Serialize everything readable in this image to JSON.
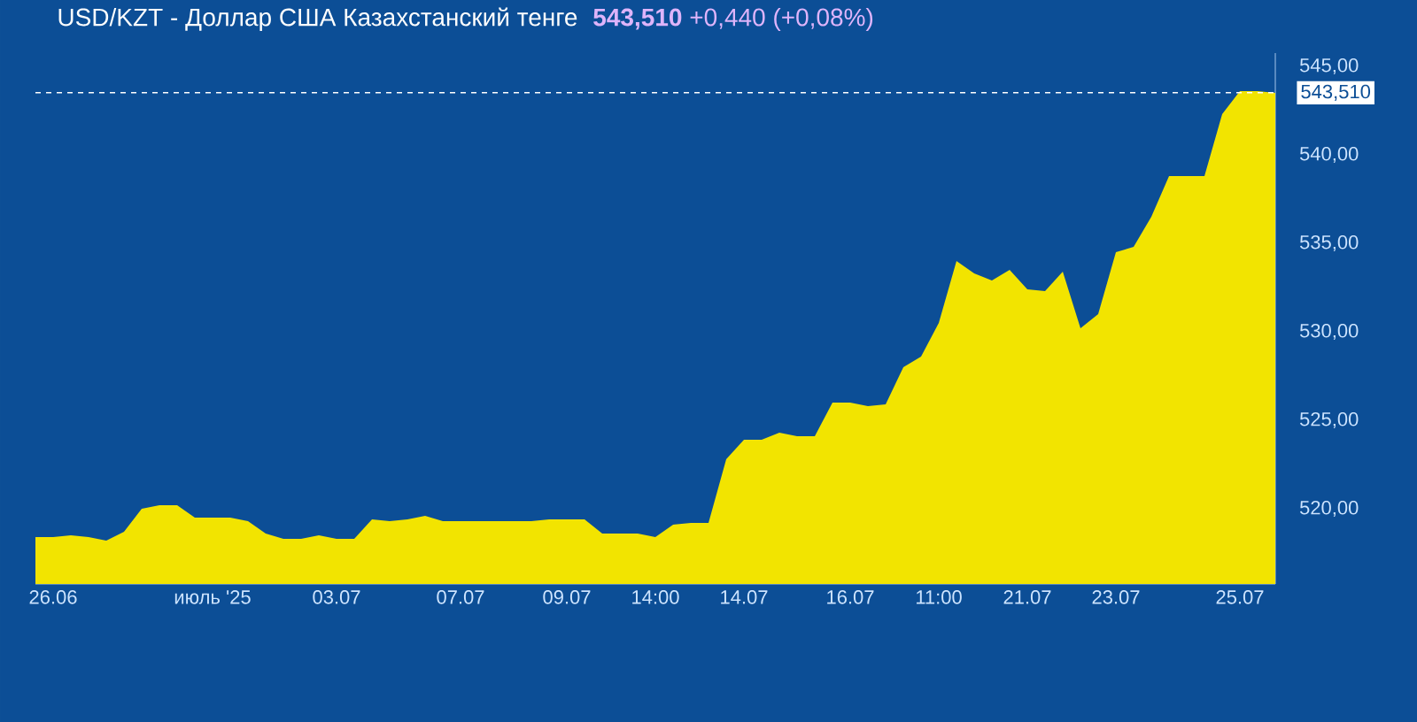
{
  "chart_data": {
    "type": "area",
    "title": "USD/KZT - Доллар США Казахстанский тенге",
    "subtitle": "**543,510** +0,440 (+0,08%)",
    "categories": [
      null,
      "26.06",
      null,
      null,
      null,
      null,
      null,
      null,
      null,
      null,
      "июль '25",
      null,
      null,
      null,
      null,
      null,
      null,
      "03.07",
      null,
      null,
      null,
      null,
      null,
      null,
      "07.07",
      null,
      null,
      null,
      null,
      null,
      "09.07",
      null,
      null,
      null,
      null,
      "14:00",
      null,
      null,
      null,
      null,
      "14.07",
      null,
      null,
      null,
      null,
      null,
      "16.07",
      null,
      null,
      null,
      null,
      "11:00",
      null,
      null,
      null,
      null,
      "21.07",
      null,
      null,
      null,
      null,
      "23.07",
      null,
      null,
      null,
      null,
      null,
      null,
      "25.07",
      null,
      null
    ],
    "values": [
      518.4,
      518.4,
      518.5,
      518.4,
      518.2,
      518.7,
      520.0,
      520.2,
      520.2,
      519.5,
      519.5,
      519.5,
      519.3,
      518.6,
      518.3,
      518.3,
      518.5,
      518.3,
      518.3,
      519.4,
      519.3,
      519.4,
      519.6,
      519.3,
      519.3,
      519.3,
      519.3,
      519.3,
      519.3,
      519.4,
      519.4,
      519.4,
      518.6,
      518.6,
      518.6,
      518.4,
      519.1,
      519.2,
      519.2,
      522.8,
      523.9,
      523.9,
      524.3,
      524.1,
      524.1,
      526.0,
      526.0,
      525.8,
      525.9,
      528.0,
      528.6,
      530.5,
      534.0,
      533.3,
      532.9,
      533.5,
      532.4,
      532.3,
      533.4,
      530.2,
      531.0,
      534.5,
      534.8,
      536.5,
      538.8,
      538.8,
      538.8,
      542.3,
      543.6,
      543.6,
      543.5
    ],
    "color": "#f2e400",
    "ylim": [
      515.75,
      545.75
    ],
    "yticks": [
      {
        "value": 520,
        "label": "520,00"
      },
      {
        "value": 525,
        "label": "525,00"
      },
      {
        "value": 530,
        "label": "530,00"
      },
      {
        "value": 535,
        "label": "535,00"
      },
      {
        "value": 540,
        "label": "540,00"
      },
      {
        "value": 545,
        "label": "545,00"
      }
    ],
    "ref_lines": [
      {
        "axis": "y",
        "value": 543.51,
        "label": "543,510",
        "color": "#ffffff",
        "line_style": "dashed"
      }
    ]
  }
}
